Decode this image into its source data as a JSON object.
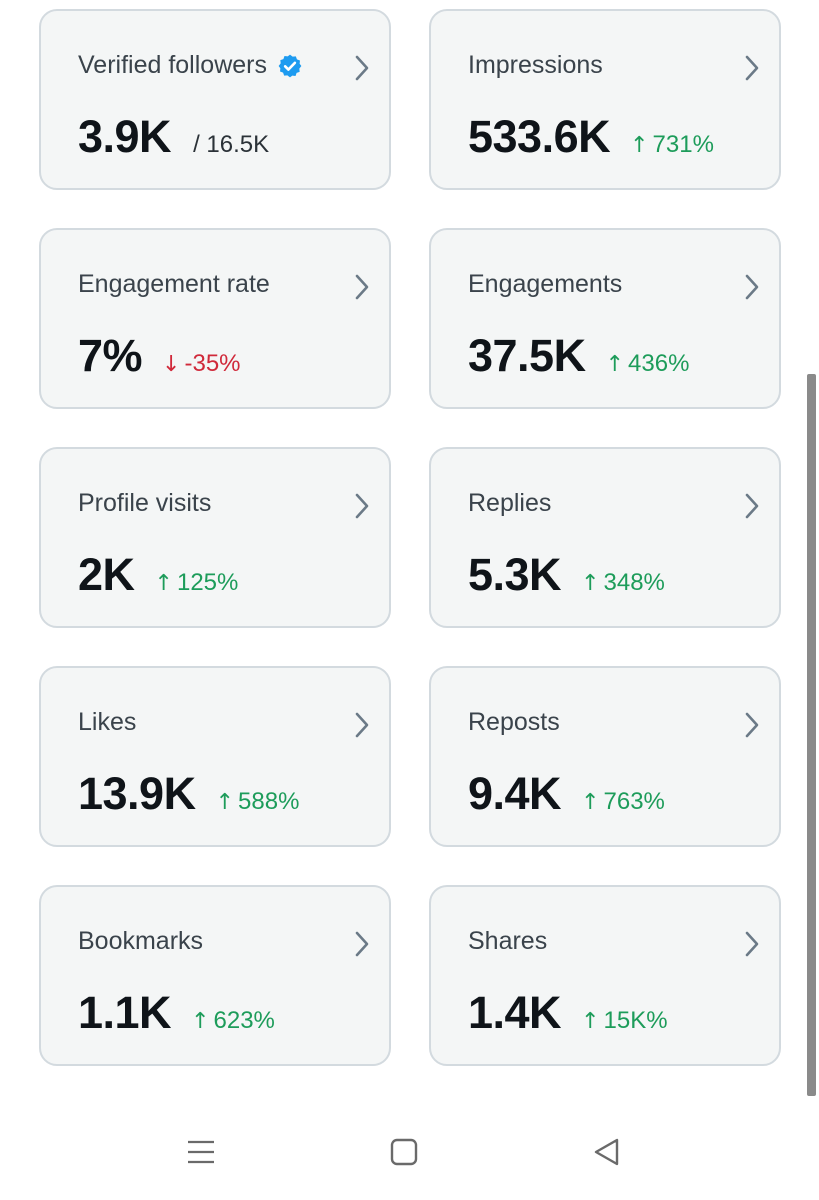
{
  "cards": [
    {
      "title": "Verified followers",
      "value": "3.9K",
      "sub": "/ 16.5K",
      "delta": "",
      "direction": "none",
      "verified": true
    },
    {
      "title": "Impressions",
      "value": "533.6K",
      "sub": "",
      "delta": "731%",
      "direction": "up",
      "verified": false
    },
    {
      "title": "Engagement rate",
      "value": "7%",
      "sub": "",
      "delta": "-35%",
      "direction": "down",
      "verified": false
    },
    {
      "title": "Engagements",
      "value": "37.5K",
      "sub": "",
      "delta": "436%",
      "direction": "up",
      "verified": false
    },
    {
      "title": "Profile visits",
      "value": "2K",
      "sub": "",
      "delta": "125%",
      "direction": "up",
      "verified": false
    },
    {
      "title": "Replies",
      "value": "5.3K",
      "sub": "",
      "delta": "348%",
      "direction": "up",
      "verified": false
    },
    {
      "title": "Likes",
      "value": "13.9K",
      "sub": "",
      "delta": "588%",
      "direction": "up",
      "verified": false
    },
    {
      "title": "Reposts",
      "value": "9.4K",
      "sub": "",
      "delta": "763%",
      "direction": "up",
      "verified": false
    },
    {
      "title": "Bookmarks",
      "value": "1.1K",
      "sub": "",
      "delta": "623%",
      "direction": "up",
      "verified": false
    },
    {
      "title": "Shares",
      "value": "1.4K",
      "sub": "",
      "delta": "15K%",
      "direction": "up",
      "verified": false
    }
  ],
  "icons": {
    "chevron": "chevron-right-icon",
    "verified": "verified-badge-icon",
    "up": "arrow-up-icon",
    "down": "arrow-down-icon"
  },
  "colors": {
    "up": "#1d9c5a",
    "down": "#d0293a",
    "verified": "#1d9bf0",
    "card_bg": "#f4f6f6",
    "card_border": "#d3dadf"
  },
  "navbar": {
    "items": [
      "menu-icon",
      "home-square-icon",
      "back-triangle-icon"
    ]
  }
}
